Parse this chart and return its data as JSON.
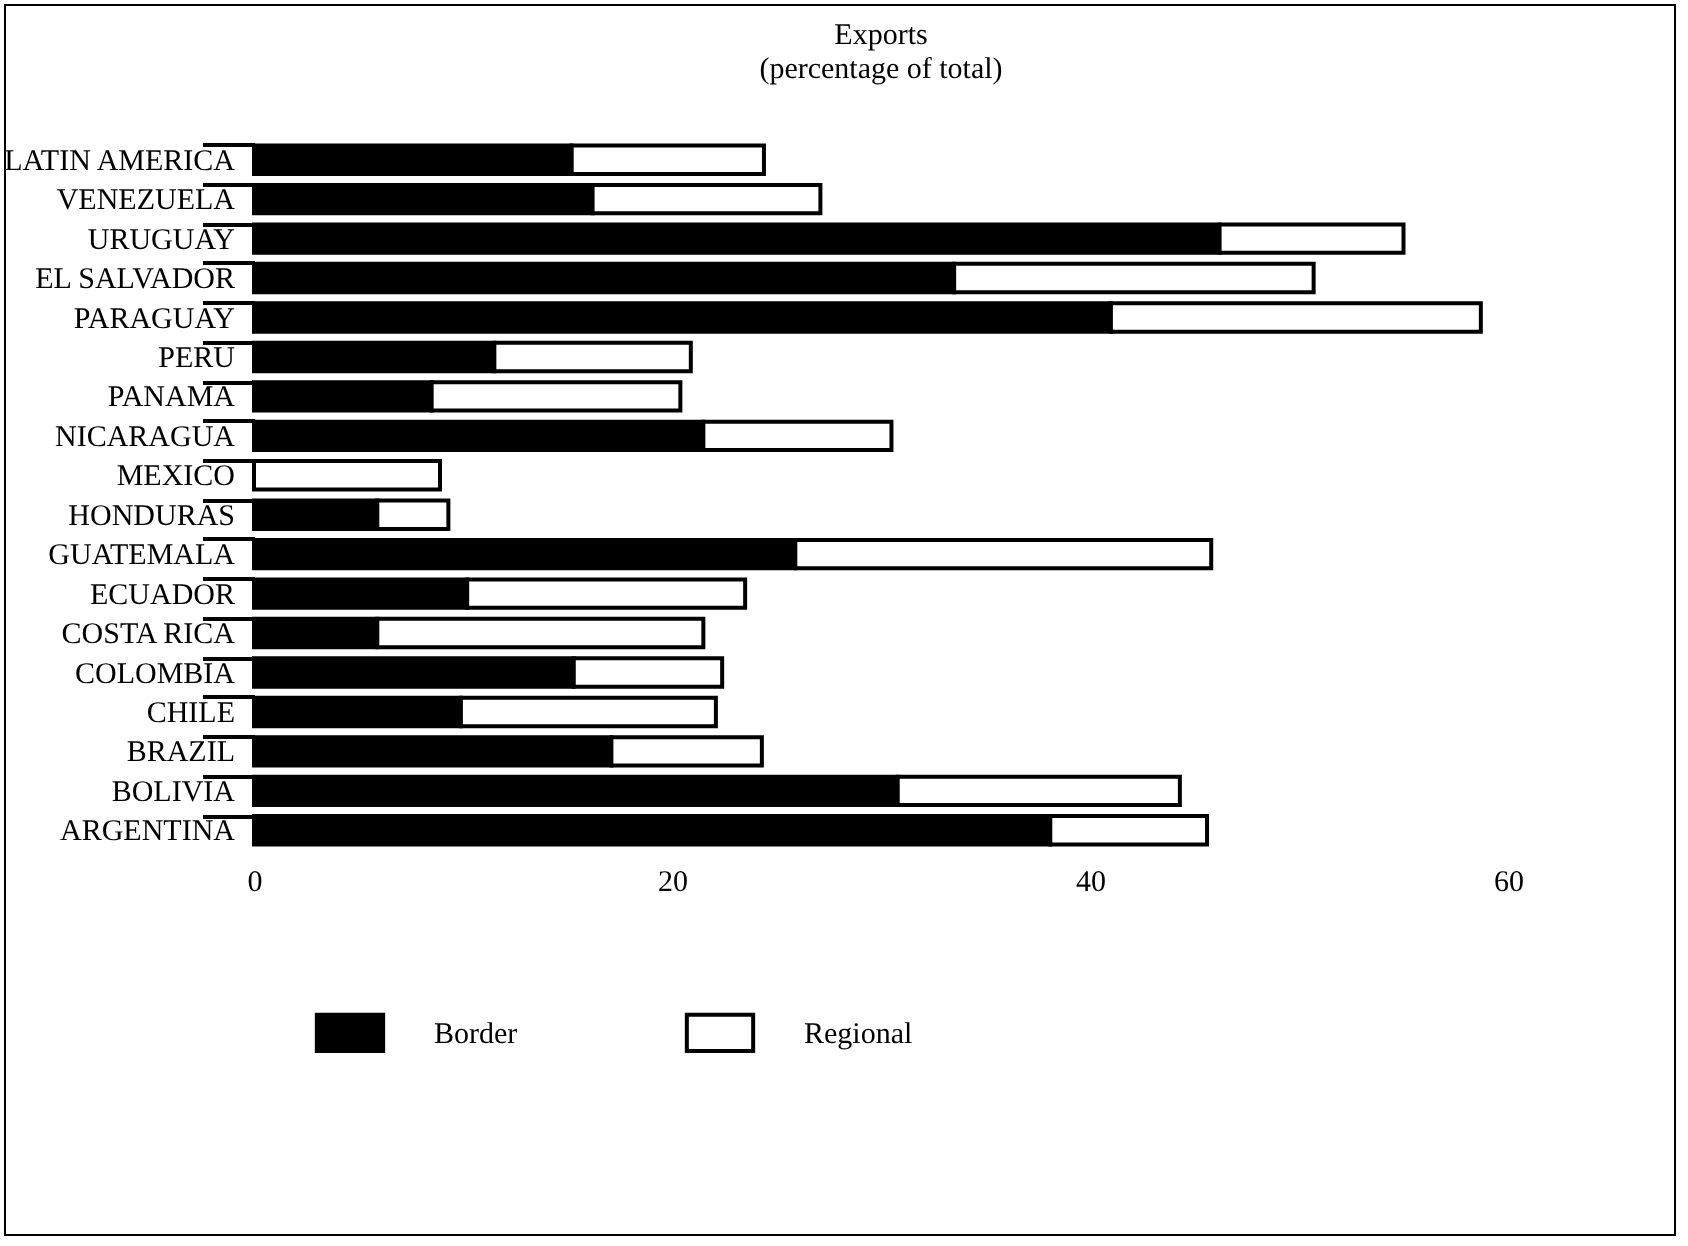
{
  "chart_data": {
    "type": "bar",
    "orientation": "horizontal",
    "stacked": true,
    "title": "Exports",
    "subtitle": "(percentage of total)",
    "categories": [
      "LATIN AMERICA",
      "VENEZUELA",
      "URUGUAY",
      "EL SALVADOR",
      "PARAGUAY",
      "PERU",
      "PANAMA",
      "NICARAGUA",
      "MEXICO",
      "HONDURAS",
      "GUATEMALA",
      "ECUADOR",
      "COSTA RICA",
      "COLOMBIA",
      "CHILE",
      "BRAZIL",
      "BOLIVIA",
      "ARGENTINA"
    ],
    "series": [
      {
        "name": "Border",
        "color": "#000000",
        "values": [
          15.2,
          16.2,
          46.2,
          33.5,
          41.0,
          11.5,
          8.5,
          21.5,
          0,
          5.9,
          25.9,
          10.2,
          5.9,
          15.3,
          9.9,
          17.1,
          30.8,
          38.1
        ]
      },
      {
        "name": "Regional",
        "color": "#ffffff",
        "values": [
          9.2,
          10.9,
          8.8,
          17.2,
          17.7,
          9.4,
          11.9,
          9.0,
          8.9,
          3.4,
          19.9,
          13.3,
          15.6,
          7.1,
          12.2,
          7.2,
          13.5,
          7.5
        ]
      }
    ],
    "xlim": [
      0,
      60
    ],
    "xticks": [
      0,
      20,
      40,
      60
    ],
    "grid": false,
    "legend": "bottom"
  }
}
